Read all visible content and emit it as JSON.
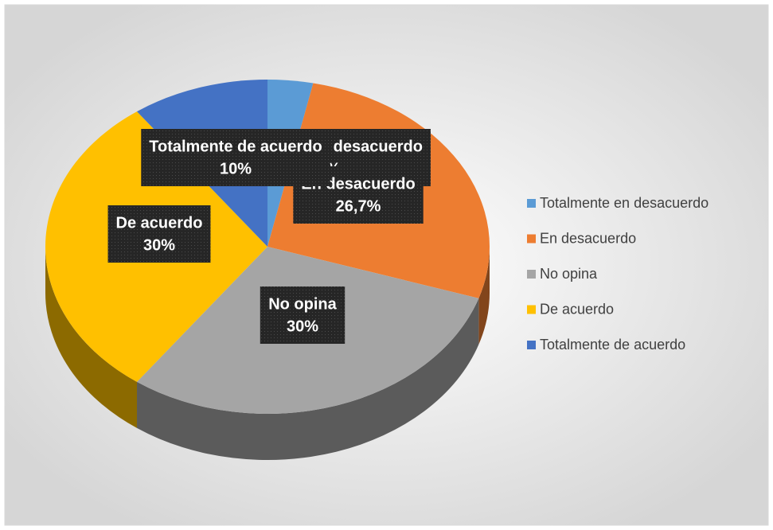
{
  "chart_data": {
    "type": "pie",
    "categories": [
      "Totalmente en desacuerdo",
      "En desacuerdo",
      "No opina",
      "De acuerdo",
      "Totalmente de acuerdo"
    ],
    "values": [
      3.3,
      26.7,
      30,
      30,
      10
    ],
    "value_labels": [
      "3,3%",
      "26,7%",
      "30%",
      "30%",
      "10%"
    ],
    "colors": [
      "#5b9bd5",
      "#ed7d31",
      "#a5a5a5",
      "#ffc000",
      "#4472c4"
    ],
    "legend": "right"
  }
}
